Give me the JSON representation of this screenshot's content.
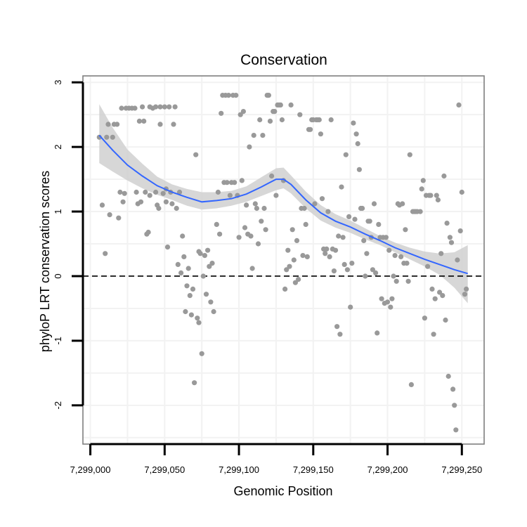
{
  "chart_data": {
    "type": "scatter",
    "title": "Conservation",
    "xlabel": "Genomic Position",
    "ylabel": "phyloP LRT conservation scores",
    "xlim": [
      7298995,
      7299265
    ],
    "ylim": [
      -2.6,
      3.1
    ],
    "x_ticks": [
      7299000,
      7299050,
      7299100,
      7299150,
      7299200,
      7299250
    ],
    "x_tick_labels": [
      "7,299,000",
      "7,299,050",
      "7,299,100",
      "7,299,150",
      "7,299,200",
      "7,299,250"
    ],
    "y_ticks": [
      -2,
      -1,
      0,
      1,
      2,
      3
    ],
    "y_tick_labels": [
      "-2",
      "-1",
      "0",
      "1",
      "2",
      "3"
    ],
    "grid": true,
    "reference_line": {
      "y": 0,
      "style": "dashed"
    },
    "colors": {
      "points": "#999999",
      "smooth": "#3366FF",
      "band": "#d0d0d0",
      "grid": "#f2f2f2",
      "frame": "#7f7f7f"
    },
    "points": [
      [
        7299006,
        2.15
      ],
      [
        7299008,
        1.1
      ],
      [
        7299010,
        0.35
      ],
      [
        7299011,
        2.15
      ],
      [
        7299012,
        2.35
      ],
      [
        7299013,
        0.95
      ],
      [
        7299015,
        2.15
      ],
      [
        7299016,
        2.35
      ],
      [
        7299018,
        2.35
      ],
      [
        7299019,
        0.9
      ],
      [
        7299020,
        1.3
      ],
      [
        7299021,
        2.6
      ],
      [
        7299022,
        1.15
      ],
      [
        7299023,
        1.28
      ],
      [
        7299024,
        2.6
      ],
      [
        7299026,
        2.6
      ],
      [
        7299028,
        2.6
      ],
      [
        7299030,
        2.6
      ],
      [
        7299031,
        1.3
      ],
      [
        7299032,
        1.12
      ],
      [
        7299033,
        2.4
      ],
      [
        7299034,
        1.15
      ],
      [
        7299035,
        2.62
      ],
      [
        7299036,
        2.4
      ],
      [
        7299037,
        1.3
      ],
      [
        7299038,
        0.65
      ],
      [
        7299039,
        0.68
      ],
      [
        7299040,
        2.62
      ],
      [
        7299040,
        1.25
      ],
      [
        7299042,
        2.6
      ],
      [
        7299044,
        1.3
      ],
      [
        7299044,
        2.62
      ],
      [
        7299045,
        1.1
      ],
      [
        7299046,
        1.05
      ],
      [
        7299047,
        2.35
      ],
      [
        7299047,
        2.62
      ],
      [
        7299049,
        1.28
      ],
      [
        7299050,
        2.62
      ],
      [
        7299051,
        1.35
      ],
      [
        7299051,
        1.15
      ],
      [
        7299052,
        0.45
      ],
      [
        7299053,
        2.62
      ],
      [
        7299054,
        1.3
      ],
      [
        7299055,
        1.12
      ],
      [
        7299056,
        2.35
      ],
      [
        7299057,
        2.62
      ],
      [
        7299058,
        1.05
      ],
      [
        7299059,
        0.18
      ],
      [
        7299060,
        1.3
      ],
      [
        7299061,
        0.05
      ],
      [
        7299062,
        0.62
      ],
      [
        7299063,
        0.3
      ],
      [
        7299064,
        -0.55
      ],
      [
        7299065,
        -0.15
      ],
      [
        7299066,
        0.12
      ],
      [
        7299067,
        -0.3
      ],
      [
        7299068,
        -0.6
      ],
      [
        7299069,
        -0.2
      ],
      [
        7299070,
        -1.65
      ],
      [
        7299071,
        1.88
      ],
      [
        7299072,
        -0.65
      ],
      [
        7299073,
        -0.72
      ],
      [
        7299073,
        0.38
      ],
      [
        7299074,
        0.35
      ],
      [
        7299075,
        -1.2
      ],
      [
        7299076,
        0.0
      ],
      [
        7299077,
        0.32
      ],
      [
        7299078,
        -0.28
      ],
      [
        7299079,
        0.4
      ],
      [
        7299080,
        0.15
      ],
      [
        7299081,
        -0.4
      ],
      [
        7299082,
        0.2
      ],
      [
        7299083,
        -0.55
      ],
      [
        7299085,
        0.8
      ],
      [
        7299086,
        1.3
      ],
      [
        7299087,
        0.65
      ],
      [
        7299088,
        2.52
      ],
      [
        7299089,
        2.8
      ],
      [
        7299090,
        1.45
      ],
      [
        7299091,
        2.8
      ],
      [
        7299092,
        1.45
      ],
      [
        7299093,
        2.8
      ],
      [
        7299094,
        1.25
      ],
      [
        7299095,
        1.45
      ],
      [
        7299096,
        2.8
      ],
      [
        7299097,
        1.45
      ],
      [
        7299098,
        2.8
      ],
      [
        7299099,
        1.25
      ],
      [
        7299100,
        0.6
      ],
      [
        7299101,
        2.5
      ],
      [
        7299102,
        1.48
      ],
      [
        7299103,
        2.55
      ],
      [
        7299104,
        0.75
      ],
      [
        7299105,
        1.1
      ],
      [
        7299106,
        0.65
      ],
      [
        7299107,
        2.0
      ],
      [
        7299108,
        0.62
      ],
      [
        7299109,
        0.12
      ],
      [
        7299110,
        2.18
      ],
      [
        7299111,
        1.12
      ],
      [
        7299112,
        1.05
      ],
      [
        7299113,
        0.5
      ],
      [
        7299114,
        2.42
      ],
      [
        7299115,
        0.85
      ],
      [
        7299116,
        2.18
      ],
      [
        7299117,
        1.05
      ],
      [
        7299118,
        0.72
      ],
      [
        7299119,
        2.8
      ],
      [
        7299120,
        2.8
      ],
      [
        7299121,
        2.4
      ],
      [
        7299122,
        1.55
      ],
      [
        7299123,
        2.55
      ],
      [
        7299124,
        2.55
      ],
      [
        7299125,
        1.25
      ],
      [
        7299126,
        2.65
      ],
      [
        7299127,
        2.65
      ],
      [
        7299128,
        2.65
      ],
      [
        7299129,
        2.42
      ],
      [
        7299130,
        1.48
      ],
      [
        7299131,
        -0.2
      ],
      [
        7299132,
        0.1
      ],
      [
        7299133,
        0.4
      ],
      [
        7299134,
        0.15
      ],
      [
        7299135,
        2.65
      ],
      [
        7299136,
        0.72
      ],
      [
        7299137,
        0.25
      ],
      [
        7299138,
        -0.1
      ],
      [
        7299139,
        0.55
      ],
      [
        7299140,
        -0.05
      ],
      [
        7299141,
        2.5
      ],
      [
        7299142,
        1.05
      ],
      [
        7299143,
        0.32
      ],
      [
        7299144,
        1.05
      ],
      [
        7299145,
        0.8
      ],
      [
        7299146,
        0.3
      ],
      [
        7299147,
        2.27
      ],
      [
        7299148,
        2.27
      ],
      [
        7299149,
        2.42
      ],
      [
        7299150,
        2.42
      ],
      [
        7299151,
        1.12
      ],
      [
        7299152,
        2.42
      ],
      [
        7299153,
        2.42
      ],
      [
        7299154,
        2.42
      ],
      [
        7299155,
        2.2
      ],
      [
        7299156,
        1.2
      ],
      [
        7299157,
        0.42
      ],
      [
        7299158,
        0.35
      ],
      [
        7299159,
        0.42
      ],
      [
        7299160,
        1.0
      ],
      [
        7299161,
        0.3
      ],
      [
        7299162,
        2.42
      ],
      [
        7299163,
        0.42
      ],
      [
        7299164,
        0.08
      ],
      [
        7299165,
        0.4
      ],
      [
        7299166,
        -0.78
      ],
      [
        7299167,
        0.62
      ],
      [
        7299168,
        -0.9
      ],
      [
        7299169,
        1.38
      ],
      [
        7299170,
        0.6
      ],
      [
        7299171,
        0.18
      ],
      [
        7299172,
        1.88
      ],
      [
        7299173,
        0.1
      ],
      [
        7299174,
        0.92
      ],
      [
        7299175,
        -0.48
      ],
      [
        7299176,
        0.2
      ],
      [
        7299177,
        2.37
      ],
      [
        7299178,
        0.88
      ],
      [
        7299179,
        2.2
      ],
      [
        7299180,
        2.05
      ],
      [
        7299181,
        1.65
      ],
      [
        7299182,
        1.05
      ],
      [
        7299183,
        1.05
      ],
      [
        7299184,
        0.55
      ],
      [
        7299185,
        0.0
      ],
      [
        7299186,
        0.35
      ],
      [
        7299187,
        0.85
      ],
      [
        7299188,
        0.85
      ],
      [
        7299189,
        0.6
      ],
      [
        7299190,
        0.1
      ],
      [
        7299191,
        1.12
      ],
      [
        7299192,
        0.05
      ],
      [
        7299193,
        -0.88
      ],
      [
        7299194,
        0.8
      ],
      [
        7299195,
        0.6
      ],
      [
        7299196,
        -0.35
      ],
      [
        7299197,
        0.6
      ],
      [
        7299198,
        -0.42
      ],
      [
        7299199,
        0.6
      ],
      [
        7299200,
        -0.4
      ],
      [
        7299201,
        0.4
      ],
      [
        7299202,
        -0.48
      ],
      [
        7299203,
        -0.35
      ],
      [
        7299204,
        0.0
      ],
      [
        7299205,
        0.32
      ],
      [
        7299206,
        -0.08
      ],
      [
        7299207,
        1.12
      ],
      [
        7299208,
        1.1
      ],
      [
        7299209,
        0.3
      ],
      [
        7299210,
        1.12
      ],
      [
        7299211,
        0.2
      ],
      [
        7299212,
        0.72
      ],
      [
        7299213,
        0.2
      ],
      [
        7299214,
        -0.08
      ],
      [
        7299215,
        1.88
      ],
      [
        7299216,
        -1.68
      ],
      [
        7299217,
        1.0
      ],
      [
        7299218,
        1.0
      ],
      [
        7299219,
        1.0
      ],
      [
        7299220,
        1.0
      ],
      [
        7299222,
        1.0
      ],
      [
        7299223,
        1.35
      ],
      [
        7299224,
        1.48
      ],
      [
        7299225,
        -0.65
      ],
      [
        7299226,
        1.25
      ],
      [
        7299227,
        0.15
      ],
      [
        7299228,
        1.25
      ],
      [
        7299229,
        1.25
      ],
      [
        7299230,
        -0.2
      ],
      [
        7299231,
        -0.9
      ],
      [
        7299232,
        -0.35
      ],
      [
        7299233,
        1.25
      ],
      [
        7299234,
        1.18
      ],
      [
        7299235,
        -0.25
      ],
      [
        7299236,
        0.35
      ],
      [
        7299237,
        -0.3
      ],
      [
        7299238,
        1.55
      ],
      [
        7299239,
        -0.68
      ],
      [
        7299240,
        0.82
      ],
      [
        7299241,
        -1.55
      ],
      [
        7299242,
        0.6
      ],
      [
        7299243,
        0.52
      ],
      [
        7299244,
        -1.75
      ],
      [
        7299245,
        -2.0
      ],
      [
        7299246,
        -2.38
      ],
      [
        7299247,
        0.25
      ],
      [
        7299248,
        2.65
      ],
      [
        7299249,
        0.7
      ],
      [
        7299250,
        1.3
      ],
      [
        7299252,
        -0.28
      ],
      [
        7299253,
        -0.2
      ]
    ],
    "smooth": {
      "x": [
        7299006,
        7299015,
        7299025,
        7299035,
        7299045,
        7299055,
        7299065,
        7299075,
        7299085,
        7299095,
        7299105,
        7299115,
        7299125,
        7299130,
        7299135,
        7299145,
        7299155,
        7299165,
        7299175,
        7299185,
        7299195,
        7299205,
        7299215,
        7299225,
        7299235,
        7299245,
        7299254
      ],
      "y": [
        2.18,
        1.95,
        1.72,
        1.55,
        1.4,
        1.3,
        1.22,
        1.15,
        1.17,
        1.2,
        1.27,
        1.38,
        1.5,
        1.5,
        1.42,
        1.18,
        0.98,
        0.85,
        0.76,
        0.65,
        0.55,
        0.44,
        0.35,
        0.26,
        0.18,
        0.1,
        0.04
      ],
      "lower": [
        1.75,
        1.62,
        1.48,
        1.36,
        1.26,
        1.18,
        1.09,
        1.03,
        1.05,
        1.09,
        1.15,
        1.24,
        1.33,
        1.36,
        1.28,
        1.05,
        0.86,
        0.75,
        0.67,
        0.57,
        0.48,
        0.37,
        0.26,
        0.15,
        0.02,
        -0.18,
        -0.42
      ],
      "upper": [
        2.66,
        2.3,
        1.96,
        1.74,
        1.54,
        1.42,
        1.35,
        1.3,
        1.3,
        1.32,
        1.39,
        1.53,
        1.67,
        1.68,
        1.56,
        1.31,
        1.1,
        0.96,
        0.86,
        0.74,
        0.62,
        0.52,
        0.44,
        0.38,
        0.35,
        0.37,
        0.48
      ]
    }
  }
}
